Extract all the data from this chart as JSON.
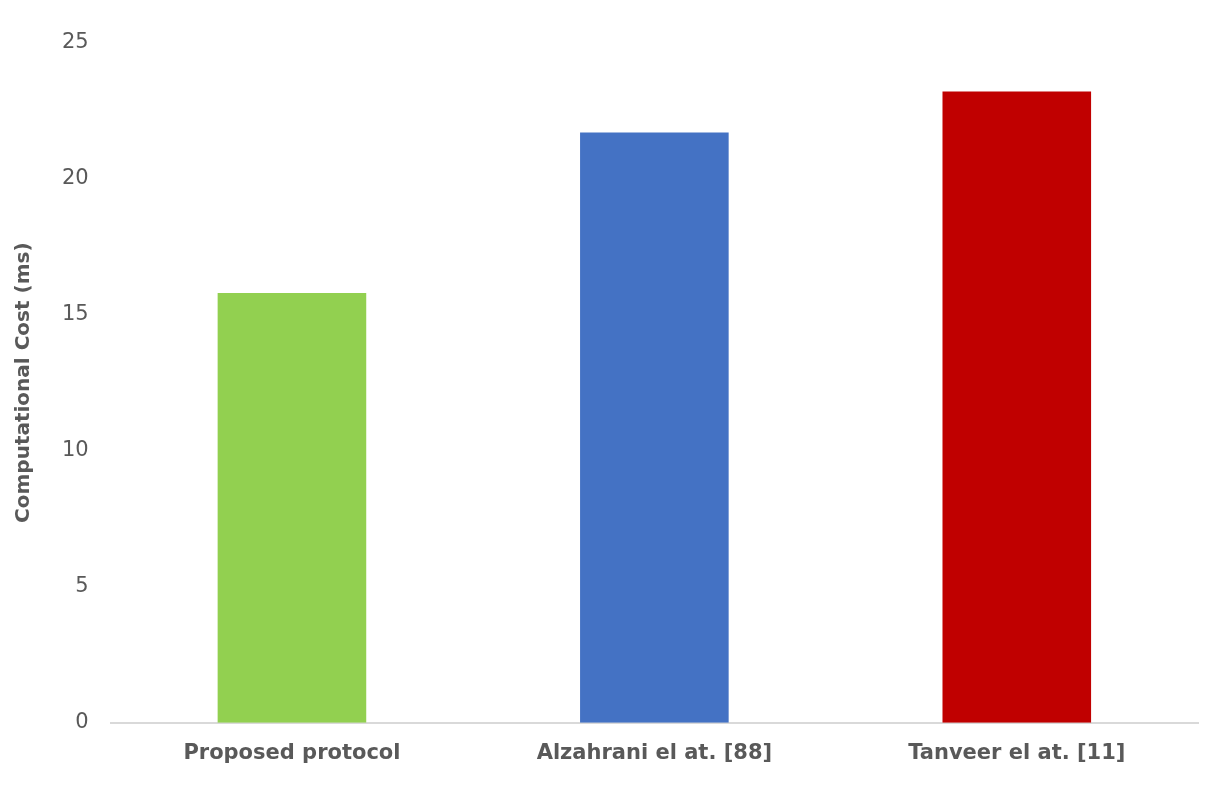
{
  "chart_data": {
    "type": "bar",
    "ylabel": "Computational Cost (ms)",
    "categories": [
      "Proposed protocol",
      "Alzahrani el at. [88]",
      "Tanveer el at. [11]"
    ],
    "values": [
      15.8,
      21.7,
      23.2
    ],
    "colors": [
      "#92d050",
      "#4472c4",
      "#c00000"
    ],
    "ylim": [
      0,
      25
    ],
    "yticks": [
      0,
      5,
      10,
      15,
      20,
      25
    ],
    "grid": false,
    "legend": false
  }
}
